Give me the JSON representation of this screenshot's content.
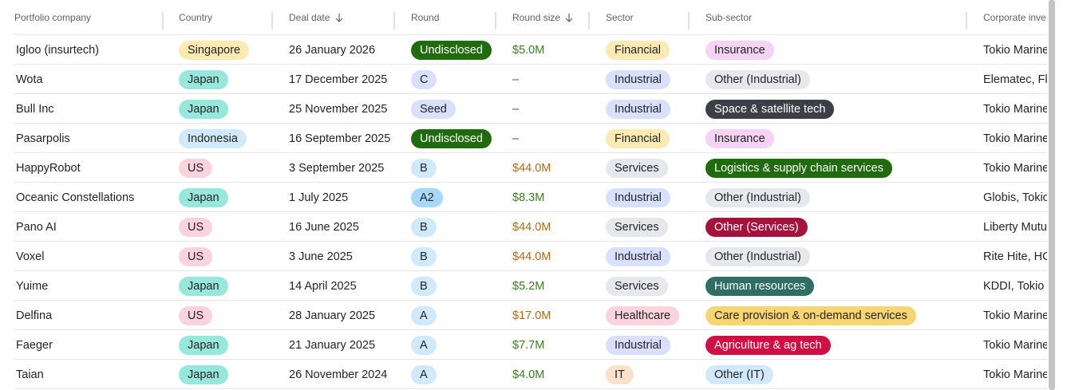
{
  "table": {
    "headers": [
      "Portfolio company",
      "Country",
      "Deal date",
      "Round",
      "Round size",
      "Sector",
      "Sub-sector",
      "Corporate inve"
    ],
    "rows": [
      [
        "Igloo (insurtech)",
        "Singapore",
        "26 January 2026",
        "Undisclosed",
        "$5.0M",
        "Financial",
        "Insurance",
        "Tokio Marine"
      ],
      [
        "Wota",
        "Japan",
        "17 December 2025",
        "C",
        "–",
        "Industrial",
        "Other (Industrial)",
        "Elematec, Fle"
      ],
      [
        "Bull Inc",
        "Japan",
        "25 November 2025",
        "Seed",
        "–",
        "Industrial",
        "Space & satellite tech",
        "Tokio Marine"
      ],
      [
        "Pasarpolis",
        "Indonesia",
        "16 September 2025",
        "Undisclosed",
        "–",
        "Financial",
        "Insurance",
        "Tokio Marine"
      ],
      [
        "HappyRobot",
        "US",
        "3 September 2025",
        "B",
        "$44.0M",
        "Services",
        "Logistics & supply chain services",
        "Tokio Marine"
      ],
      [
        "Oceanic Constellations",
        "Japan",
        "1 July 2025",
        "A2",
        "$8.3M",
        "Industrial",
        "Other (Industrial)",
        "Globis, Tokio"
      ],
      [
        "Pano AI",
        "US",
        "16 June 2025",
        "B",
        "$44.0M",
        "Services",
        "Other (Services)",
        "Liberty Mutu"
      ],
      [
        "Voxel",
        "US",
        "3 June 2025",
        "B",
        "$44.0M",
        "Industrial",
        "Other (Industrial)",
        "Rite Hite, HC"
      ],
      [
        "Yuime",
        "Japan",
        "14 April 2025",
        "B",
        "$5.2M",
        "Services",
        "Human resources",
        "KDDI, Tokio"
      ],
      [
        "Delfina",
        "US",
        "28 January 2025",
        "A",
        "$17.0M",
        "Healthcare",
        "Care provision & on-demand services",
        "Tokio Marine"
      ],
      [
        "Faeger",
        "Japan",
        "21 January 2025",
        "A",
        "$7.7M",
        "Industrial",
        "Agriculture & ag tech",
        "Tokio Marine"
      ],
      [
        "Taian",
        "Japan",
        "26 November 2024",
        "A",
        "$4.0M",
        "IT",
        "Other (IT)",
        "Tokio Marine"
      ]
    ]
  }
}
